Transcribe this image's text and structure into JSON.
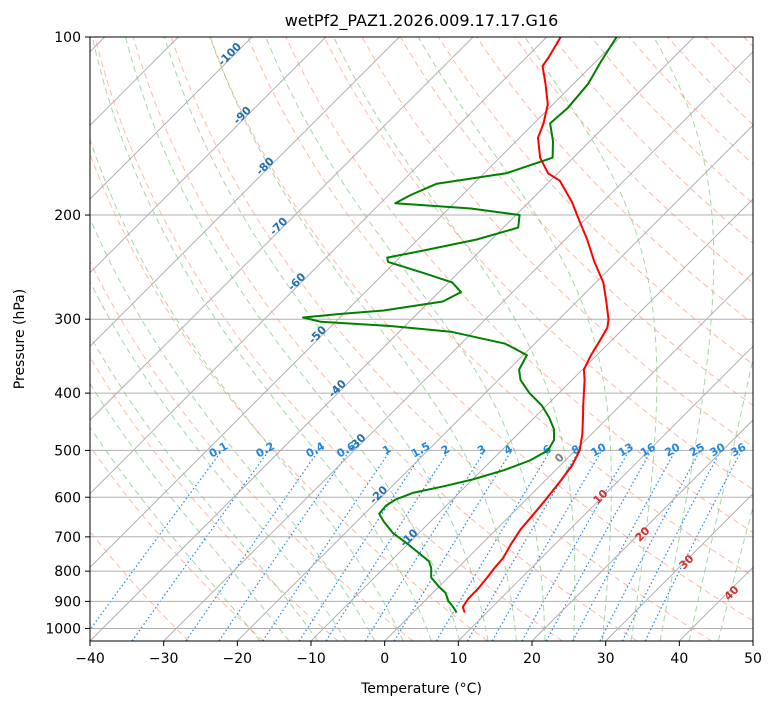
{
  "chart_data": {
    "type": "skew-t",
    "title": "wetPf2_PAZ1.2026.009.17.17.G16",
    "xlabel": "Temperature (°C)",
    "ylabel": "Pressure (hPa)",
    "xlim": [
      -40,
      50
    ],
    "ylim": [
      1050,
      100
    ],
    "x_ticks": [
      -40,
      -30,
      -20,
      -10,
      0,
      10,
      20,
      30,
      40,
      50
    ],
    "y_ticks": [
      100,
      200,
      300,
      400,
      500,
      600,
      700,
      800,
      900,
      1000
    ],
    "y_scale": "log",
    "grid": true,
    "colors": {
      "temperature": "#ff0000",
      "dewpoint": "#008000",
      "dry_adiabats": "#ff8c69",
      "moist_adiabats": "#4caf50",
      "mixing_ratio": "#1e88e5",
      "isotherm_labels": "#1f6fb2",
      "grid": "#b0b0b0"
    },
    "series": [
      {
        "name": "temperature",
        "points": [
          {
            "p": 940,
            "t": 7.0
          },
          {
            "p": 920,
            "t": 6.0
          },
          {
            "p": 890,
            "t": 5.6
          },
          {
            "p": 860,
            "t": 5.6
          },
          {
            "p": 820,
            "t": 5.3
          },
          {
            "p": 790,
            "t": 5.0
          },
          {
            "p": 760,
            "t": 4.8
          },
          {
            "p": 720,
            "t": 4.0
          },
          {
            "p": 680,
            "t": 3.3
          },
          {
            "p": 640,
            "t": 3.0
          },
          {
            "p": 600,
            "t": 2.6
          },
          {
            "p": 560,
            "t": 2.1
          },
          {
            "p": 530,
            "t": 1.6
          },
          {
            "p": 500,
            "t": 0.6
          },
          {
            "p": 470,
            "t": -1.2
          },
          {
            "p": 440,
            "t": -3.4
          },
          {
            "p": 420,
            "t": -5.0
          },
          {
            "p": 400,
            "t": -6.6
          },
          {
            "p": 380,
            "t": -8.3
          },
          {
            "p": 365,
            "t": -9.8
          },
          {
            "p": 345,
            "t": -10.8
          },
          {
            "p": 330,
            "t": -11.4
          },
          {
            "p": 310,
            "t": -12.3
          },
          {
            "p": 300,
            "t": -13.3
          },
          {
            "p": 280,
            "t": -16.0
          },
          {
            "p": 260,
            "t": -19.0
          },
          {
            "p": 240,
            "t": -23.0
          },
          {
            "p": 220,
            "t": -27.0
          },
          {
            "p": 205,
            "t": -30.5
          },
          {
            "p": 190,
            "t": -34.2
          },
          {
            "p": 175,
            "t": -38.7
          },
          {
            "p": 170,
            "t": -41.3
          },
          {
            "p": 160,
            "t": -44.5
          },
          {
            "p": 148,
            "t": -47.5
          },
          {
            "p": 140,
            "t": -48.7
          },
          {
            "p": 130,
            "t": -50.7
          },
          {
            "p": 120,
            "t": -53.8
          },
          {
            "p": 112,
            "t": -56.6
          },
          {
            "p": 108,
            "t": -57.0
          },
          {
            "p": 100,
            "t": -58.1
          }
        ]
      },
      {
        "name": "dewpoint",
        "points": [
          {
            "p": 940,
            "t": 5.9
          },
          {
            "p": 920,
            "t": 4.7
          },
          {
            "p": 900,
            "t": 3.3
          },
          {
            "p": 870,
            "t": 1.7
          },
          {
            "p": 850,
            "t": 0.0
          },
          {
            "p": 820,
            "t": -2.3
          },
          {
            "p": 790,
            "t": -3.6
          },
          {
            "p": 770,
            "t": -4.8
          },
          {
            "p": 720,
            "t": -10.0
          },
          {
            "p": 690,
            "t": -13.5
          },
          {
            "p": 660,
            "t": -16.3
          },
          {
            "p": 640,
            "t": -18.0
          },
          {
            "p": 620,
            "t": -18.2
          },
          {
            "p": 605,
            "t": -17.7
          },
          {
            "p": 590,
            "t": -16.3
          },
          {
            "p": 575,
            "t": -13.0
          },
          {
            "p": 560,
            "t": -10.0
          },
          {
            "p": 540,
            "t": -7.0
          },
          {
            "p": 520,
            "t": -4.8
          },
          {
            "p": 500,
            "t": -3.7
          },
          {
            "p": 480,
            "t": -4.3
          },
          {
            "p": 460,
            "t": -5.8
          },
          {
            "p": 440,
            "t": -8.0
          },
          {
            "p": 420,
            "t": -10.6
          },
          {
            "p": 400,
            "t": -14.0
          },
          {
            "p": 380,
            "t": -17.0
          },
          {
            "p": 365,
            "t": -18.6
          },
          {
            "p": 345,
            "t": -19.5
          },
          {
            "p": 330,
            "t": -24.0
          },
          {
            "p": 315,
            "t": -33.0
          },
          {
            "p": 308,
            "t": -42.0
          },
          {
            "p": 303,
            "t": -52.0
          },
          {
            "p": 298,
            "t": -55.0
          },
          {
            "p": 294,
            "t": -50.5
          },
          {
            "p": 290,
            "t": -45.0
          },
          {
            "p": 280,
            "t": -38.2
          },
          {
            "p": 270,
            "t": -37.0
          },
          {
            "p": 260,
            "t": -39.5
          },
          {
            "p": 250,
            "t": -45.0
          },
          {
            "p": 240,
            "t": -51.0
          },
          {
            "p": 236,
            "t": -51.7
          },
          {
            "p": 230,
            "t": -48.0
          },
          {
            "p": 220,
            "t": -42.0
          },
          {
            "p": 210,
            "t": -38.0
          },
          {
            "p": 200,
            "t": -39.5
          },
          {
            "p": 195,
            "t": -47.0
          },
          {
            "p": 191,
            "t": -58.0
          },
          {
            "p": 185,
            "t": -57.0
          },
          {
            "p": 177,
            "t": -55.0
          },
          {
            "p": 170,
            "t": -47.0
          },
          {
            "p": 160,
            "t": -42.8
          },
          {
            "p": 150,
            "t": -45.0
          },
          {
            "p": 140,
            "t": -47.8
          },
          {
            "p": 132,
            "t": -47.5
          },
          {
            "p": 120,
            "t": -48.0
          },
          {
            "p": 110,
            "t": -49.3
          },
          {
            "p": 100,
            "t": -50.5
          }
        ]
      }
    ],
    "isotherm_labels": [
      "-100",
      "-90",
      "-80",
      "-70",
      "-60",
      "-50",
      "-40",
      "-30",
      "-20",
      "-10"
    ],
    "mixing_ratio_labels": [
      "0.1",
      "0.2",
      "0.4",
      "0.6",
      "1",
      "1.5",
      "2",
      "3",
      "4",
      "6",
      "8",
      "10",
      "13",
      "16",
      "20",
      "25",
      "30",
      "36"
    ],
    "moist_adiabat_labels": [
      "0",
      "10",
      "20",
      "30",
      "40"
    ]
  }
}
